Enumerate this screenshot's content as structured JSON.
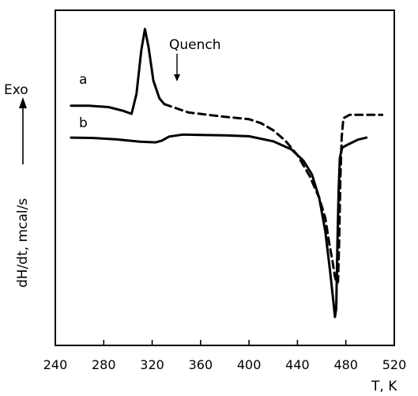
{
  "chart_data": {
    "type": "line",
    "xlabel": "T, K",
    "ylabel": "dH/dt, mcal/s",
    "exo_label": "Exo",
    "xlim": [
      240,
      520
    ],
    "x_ticks": [
      240,
      280,
      320,
      360,
      400,
      440,
      480,
      520
    ],
    "y_ticks_shown": false,
    "grid": false,
    "annotations": [
      {
        "text": "Quench",
        "x": 330,
        "points_to_series": "a"
      }
    ],
    "series": [
      {
        "name": "a",
        "segments": [
          {
            "style": "solid",
            "points": [
              [
                253,
                0.715
              ],
              [
                268,
                0.715
              ],
              [
                284,
                0.711
              ],
              [
                296,
                0.7
              ],
              [
                303,
                0.691
              ],
              [
                307,
                0.75
              ],
              [
                311,
                0.88
              ],
              [
                314,
                0.944
              ],
              [
                317,
                0.89
              ],
              [
                321,
                0.79
              ],
              [
                326,
                0.737
              ],
              [
                330,
                0.72
              ]
            ]
          },
          {
            "style": "dashed",
            "points": [
              [
                330,
                0.72
              ],
              [
                350,
                0.695
              ],
              [
                380,
                0.682
              ],
              [
                400,
                0.675
              ],
              [
                410,
                0.663
              ],
              [
                420,
                0.642
              ],
              [
                430,
                0.611
              ],
              [
                440,
                0.568
              ],
              [
                450,
                0.506
              ],
              [
                458,
                0.44
              ],
              [
                463,
                0.38
              ],
              [
                466,
                0.31
              ],
              [
                469,
                0.25
              ],
              [
                471,
                0.205
              ],
              [
                472.5,
                0.185
              ],
              [
                473.5,
                0.19
              ],
              [
                474.5,
                0.32
              ],
              [
                475.5,
                0.5
              ],
              [
                476.5,
                0.62
              ],
              [
                478,
                0.678
              ],
              [
                483,
                0.688
              ],
              [
                510,
                0.688
              ]
            ]
          }
        ]
      },
      {
        "name": "b",
        "segments": [
          {
            "style": "solid",
            "points": [
              [
                253,
                0.62
              ],
              [
                270,
                0.619
              ],
              [
                290,
                0.615
              ],
              [
                310,
                0.608
              ],
              [
                323,
                0.606
              ],
              [
                328,
                0.611
              ],
              [
                334,
                0.623
              ],
              [
                345,
                0.629
              ],
              [
                380,
                0.627
              ],
              [
                400,
                0.624
              ],
              [
                420,
                0.609
              ],
              [
                435,
                0.585
              ],
              [
                445,
                0.551
              ],
              [
                452,
                0.51
              ],
              [
                458,
                0.44
              ],
              [
                463,
                0.34
              ],
              [
                467,
                0.22
              ],
              [
                470,
                0.12
              ],
              [
                471,
                0.085
              ],
              [
                472,
                0.11
              ],
              [
                473,
                0.3
              ],
              [
                474,
                0.46
              ],
              [
                475,
                0.56
              ],
              [
                477,
                0.59
              ],
              [
                482,
                0.6
              ],
              [
                490,
                0.614
              ],
              [
                497,
                0.62
              ]
            ]
          }
        ]
      }
    ]
  }
}
